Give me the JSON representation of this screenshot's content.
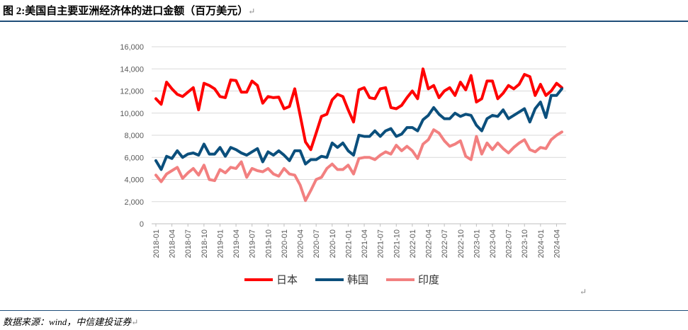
{
  "title": "图 2:美国自主要亚洲经济体的进口金额（百万美元）",
  "return_mark": "↵",
  "source": "数据来源：wind，中信建投证券",
  "chart_data": {
    "type": "line",
    "title": "",
    "xlabel": "",
    "ylabel": "",
    "ylim": [
      0,
      16000
    ],
    "yticks": [
      0,
      2000,
      4000,
      6000,
      8000,
      10000,
      12000,
      14000,
      16000
    ],
    "ytick_labels": [
      "0",
      "2,000",
      "4,000",
      "6,000",
      "8,000",
      "10,000",
      "12,000",
      "14,000",
      "16,000"
    ],
    "x_start": "2018-01",
    "x_end": "2024-05",
    "x_tick_every_months": 3,
    "grid": "horizontal",
    "legend_position": "bottom",
    "series": [
      {
        "name": "日本",
        "color": "#ff0000",
        "values": [
          11300,
          10800,
          12800,
          12200,
          11700,
          11500,
          11900,
          12300,
          10300,
          12700,
          12500,
          12200,
          11500,
          11400,
          13000,
          12950,
          11900,
          11900,
          12900,
          12500,
          10900,
          11500,
          11400,
          11450,
          10400,
          10600,
          12200,
          9800,
          7400,
          6700,
          8200,
          9700,
          9900,
          11200,
          11700,
          11500,
          10300,
          9200,
          12100,
          12300,
          11400,
          11300,
          12200,
          12300,
          10500,
          10400,
          10700,
          11400,
          12000,
          11300,
          14000,
          12200,
          12500,
          11400,
          12000,
          12300,
          11600,
          12800,
          12100,
          13400,
          11000,
          11300,
          12900,
          12900,
          11300,
          11800,
          12500,
          12200,
          12600,
          13500,
          13300,
          11600,
          12600,
          11600,
          12000,
          12700,
          12300
        ]
      },
      {
        "name": "韩国",
        "color": "#0b4f7c",
        "values": [
          5700,
          4900,
          6100,
          5900,
          6600,
          6000,
          6300,
          6400,
          6200,
          7200,
          6300,
          6300,
          6900,
          6100,
          6900,
          6700,
          6400,
          6200,
          6500,
          6800,
          5600,
          6500,
          6200,
          6600,
          6200,
          5700,
          6600,
          6600,
          5400,
          5800,
          5800,
          6100,
          6000,
          7300,
          6900,
          7300,
          6600,
          6200,
          8000,
          7900,
          7900,
          8400,
          7900,
          8400,
          8600,
          7900,
          8100,
          8700,
          8700,
          8400,
          9400,
          9800,
          10500,
          9900,
          9500,
          9500,
          10000,
          9700,
          9900,
          9800,
          8900,
          8400,
          9500,
          9800,
          9700,
          10300,
          9500,
          9800,
          10100,
          10400,
          9200,
          10400,
          11000,
          9600,
          11600,
          11600,
          12200
        ]
      },
      {
        "name": "印度",
        "color": "#f28080",
        "values": [
          4400,
          3800,
          4500,
          4800,
          5100,
          4100,
          4600,
          5000,
          4400,
          5300,
          4000,
          3900,
          4900,
          4600,
          5100,
          5000,
          5600,
          4200,
          5000,
          4800,
          4700,
          5000,
          4500,
          4300,
          5000,
          4500,
          4400,
          3500,
          2100,
          3000,
          4000,
          4200,
          5000,
          5400,
          4900,
          4900,
          5300,
          4500,
          5900,
          6000,
          6000,
          5800,
          6200,
          6500,
          6300,
          7100,
          6600,
          7000,
          6600,
          5900,
          7200,
          7600,
          8500,
          8200,
          7500,
          7000,
          7200,
          7500,
          6100,
          5800,
          7900,
          6300,
          7300,
          6700,
          7300,
          6800,
          6400,
          6900,
          7300,
          7600,
          6700,
          6500,
          6900,
          6800,
          7600,
          8000,
          8300
        ]
      }
    ]
  }
}
